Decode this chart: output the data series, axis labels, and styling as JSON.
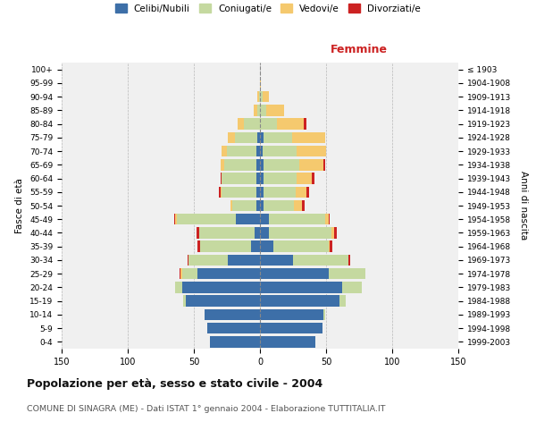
{
  "age_groups": [
    "0-4",
    "5-9",
    "10-14",
    "15-19",
    "20-24",
    "25-29",
    "30-34",
    "35-39",
    "40-44",
    "45-49",
    "50-54",
    "55-59",
    "60-64",
    "65-69",
    "70-74",
    "75-79",
    "80-84",
    "85-89",
    "90-94",
    "95-99",
    "100+"
  ],
  "birth_years": [
    "1999-2003",
    "1994-1998",
    "1989-1993",
    "1984-1988",
    "1979-1983",
    "1974-1978",
    "1969-1973",
    "1964-1968",
    "1959-1963",
    "1954-1958",
    "1949-1953",
    "1944-1948",
    "1939-1943",
    "1934-1938",
    "1929-1933",
    "1924-1928",
    "1919-1923",
    "1914-1918",
    "1909-1913",
    "1904-1908",
    "≤ 1903"
  ],
  "male": {
    "celibi": [
      38,
      40,
      42,
      56,
      59,
      47,
      24,
      7,
      4,
      18,
      3,
      3,
      3,
      3,
      3,
      2,
      0,
      0,
      0,
      0,
      0
    ],
    "coniugati": [
      0,
      0,
      0,
      2,
      5,
      12,
      30,
      38,
      42,
      45,
      18,
      26,
      26,
      24,
      22,
      17,
      12,
      2,
      1,
      0,
      0
    ],
    "vedovi": [
      0,
      0,
      0,
      0,
      0,
      1,
      0,
      0,
      0,
      1,
      1,
      1,
      0,
      3,
      4,
      5,
      5,
      3,
      1,
      0,
      0
    ],
    "divorziati": [
      0,
      0,
      0,
      0,
      0,
      1,
      1,
      2,
      2,
      1,
      0,
      1,
      1,
      0,
      0,
      0,
      0,
      0,
      0,
      0,
      0
    ]
  },
  "female": {
    "nubili": [
      42,
      47,
      48,
      60,
      62,
      52,
      25,
      10,
      7,
      7,
      3,
      3,
      3,
      3,
      2,
      3,
      0,
      0,
      0,
      0,
      0
    ],
    "coniugate": [
      0,
      0,
      1,
      5,
      15,
      28,
      42,
      42,
      47,
      42,
      23,
      24,
      25,
      27,
      26,
      21,
      13,
      5,
      2,
      0,
      0
    ],
    "vedove": [
      0,
      0,
      0,
      0,
      0,
      0,
      0,
      1,
      2,
      3,
      6,
      8,
      11,
      18,
      22,
      25,
      20,
      13,
      5,
      1,
      0
    ],
    "divorziate": [
      0,
      0,
      0,
      0,
      0,
      0,
      1,
      2,
      2,
      1,
      2,
      2,
      2,
      1,
      0,
      0,
      2,
      0,
      0,
      0,
      0
    ]
  },
  "colors": {
    "celibi": "#3d6fa8",
    "coniugati": "#c5d9a0",
    "vedovi": "#f5c96e",
    "divorziati": "#cc2222"
  },
  "xlim": 150,
  "title": "Popolazione per età, sesso e stato civile - 2004",
  "subtitle": "COMUNE DI SINAGRA (ME) - Dati ISTAT 1° gennaio 2004 - Elaborazione TUTTITALIA.IT",
  "ylabel_left": "Fasce di età",
  "ylabel_right": "Anni di nascita",
  "xlabel_right": "Femmine",
  "bg_color": "#ffffff",
  "plot_bg": "#f0f0f0"
}
